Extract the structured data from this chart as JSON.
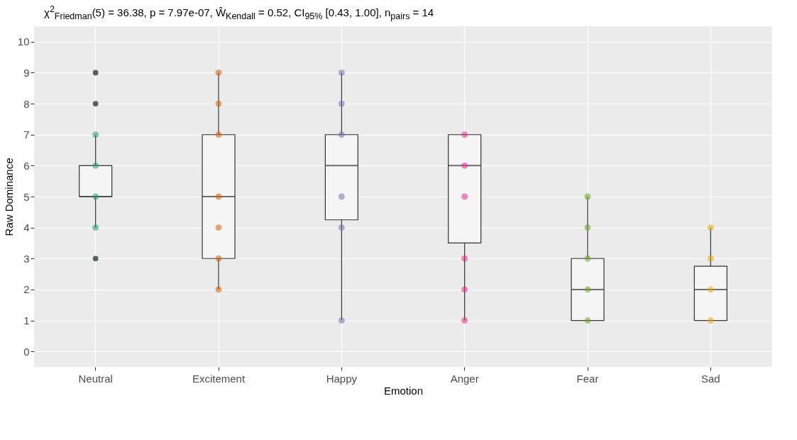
{
  "chart_data": {
    "type": "box",
    "title": "χ$^{2}$$_{Friedman}$(5) = 36.38, p = 7.97e-07, Ŵ$_{Kendall}$ = 0.52, CI$_{95%}$ [0.43, 1.00], n$_{pairs}$ = 14",
    "xlabel": "Emotion",
    "ylabel": "Raw Dominance",
    "categories": [
      "Neutral",
      "Excitement",
      "Happy",
      "Anger",
      "Fear",
      "Sad"
    ],
    "boxes": [
      {
        "low": 4,
        "q1": 5,
        "median": 5,
        "q3": 6,
        "high": 7,
        "outliers": [
          3,
          8,
          9
        ]
      },
      {
        "low": 2,
        "q1": 3,
        "median": 5,
        "q3": 7,
        "high": 9
      },
      {
        "low": 1,
        "q1": 4.25,
        "median": 6,
        "q3": 7,
        "high": 9
      },
      {
        "low": 1,
        "q1": 3.5,
        "median": 6,
        "q3": 7,
        "high": 7
      },
      {
        "low": 1,
        "q1": 1,
        "median": 2,
        "q3": 3,
        "high": 5
      },
      {
        "low": 1,
        "q1": 1,
        "median": 2,
        "q3": 2.75,
        "high": 4
      }
    ],
    "series": [
      {
        "type": "scatter",
        "color": "#1b9e77",
        "x": [
          "Neutral",
          "Neutral",
          "Neutral",
          "Neutral"
        ],
        "values": [
          4,
          5,
          6,
          7
        ]
      },
      {
        "type": "scatter",
        "color": "#d95f02",
        "x": [
          "Excitement",
          "Excitement",
          "Excitement",
          "Excitement",
          "Excitement",
          "Excitement",
          "Excitement"
        ],
        "values": [
          2,
          3,
          4,
          5,
          7,
          8,
          9
        ]
      },
      {
        "type": "scatter",
        "color": "#7570b3",
        "x": [
          "Happy",
          "Happy",
          "Happy",
          "Happy",
          "Happy",
          "Happy"
        ],
        "values": [
          1,
          4,
          5,
          7,
          8,
          9
        ]
      },
      {
        "type": "scatter",
        "color": "#e7298a",
        "x": [
          "Anger",
          "Anger",
          "Anger",
          "Anger",
          "Anger",
          "Anger"
        ],
        "values": [
          1,
          2,
          3,
          5,
          6,
          7
        ]
      },
      {
        "type": "scatter",
        "color": "#66a61e",
        "x": [
          "Fear",
          "Fear",
          "Fear",
          "Fear",
          "Fear"
        ],
        "values": [
          1,
          2,
          3,
          4,
          5
        ]
      },
      {
        "type": "scatter",
        "color": "#e6ab02",
        "x": [
          "Sad",
          "Sad",
          "Sad",
          "Sad"
        ],
        "values": [
          1,
          2,
          3,
          4
        ]
      }
    ],
    "ylim": [
      -0.5,
      10.5
    ],
    "yticks": [
      0,
      1,
      2,
      3,
      4,
      5,
      6,
      7,
      8,
      9,
      10
    ],
    "grid": true,
    "marker": "circle"
  }
}
